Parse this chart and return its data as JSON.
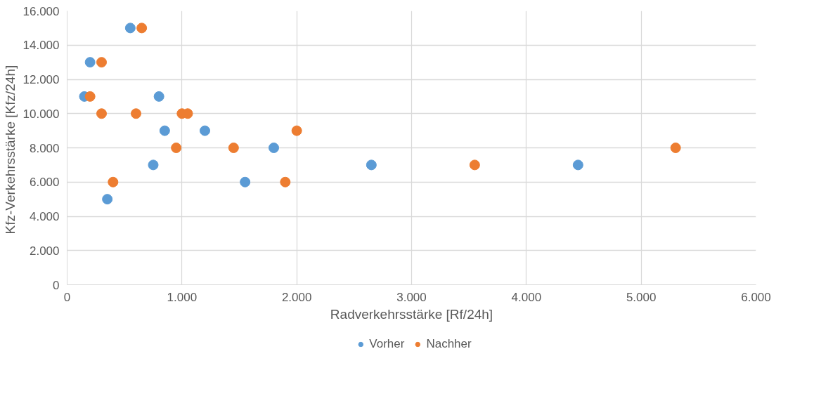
{
  "chart_data": {
    "type": "scatter",
    "xlabel": "Radverkehrsstärke [Rf/24h]",
    "ylabel": "Kfz-Verkehrsstärke  [Kfz/24h]",
    "xlim": [
      0,
      6000
    ],
    "ylim": [
      0,
      16000
    ],
    "xticks": [
      0,
      {
        "value": 1000,
        "label": "1.000"
      },
      {
        "value": 2000,
        "label": "2.000"
      },
      {
        "value": 3000,
        "label": "3.000"
      },
      {
        "value": 4000,
        "label": "4.000"
      },
      {
        "value": 5000,
        "label": "5.000"
      },
      {
        "value": 6000,
        "label": "6.000"
      }
    ],
    "yticks": [
      0,
      {
        "value": 2000,
        "label": "2.000"
      },
      {
        "value": 4000,
        "label": "4.000"
      },
      {
        "value": 6000,
        "label": "6.000"
      },
      {
        "value": 8000,
        "label": "8.000"
      },
      {
        "value": 10000,
        "label": "10.000"
      },
      {
        "value": 12000,
        "label": "12.000"
      },
      {
        "value": 14000,
        "label": "14.000"
      },
      {
        "value": 16000,
        "label": "16.000"
      }
    ],
    "grid": true,
    "legend": "bottom",
    "marker": "circle",
    "series": [
      {
        "name": "Vorher",
        "color": "#5b9bd5",
        "x": [
          550,
          200,
          150,
          800,
          850,
          1200,
          750,
          350,
          1550,
          1800,
          2650,
          4450
        ],
        "values": [
          15000,
          13000,
          11000,
          11000,
          9000,
          9000,
          7000,
          5000,
          6000,
          8000,
          7000,
          7000
        ]
      },
      {
        "name": "Nachher",
        "color": "#ed7d31",
        "x": [
          650,
          300,
          200,
          300,
          600,
          400,
          950,
          1000,
          1050,
          1450,
          1900,
          2000,
          3550,
          5300
        ],
        "values": [
          15000,
          13000,
          11000,
          10000,
          10000,
          6000,
          8000,
          10000,
          10000,
          8000,
          6000,
          9000,
          7000,
          8000
        ]
      }
    ]
  }
}
